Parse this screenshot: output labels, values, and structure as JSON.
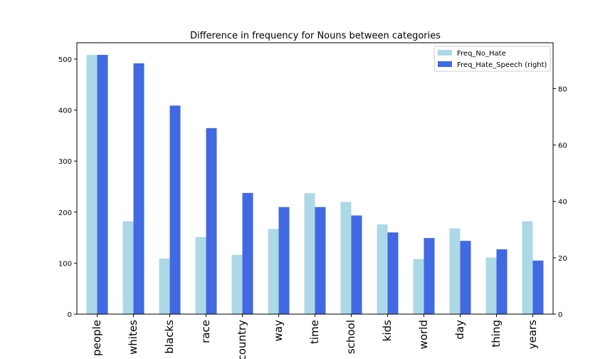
{
  "chart_data": {
    "type": "bar",
    "title": "Difference in frequency for Nouns between categories",
    "categories": [
      "people",
      "whites",
      "blacks",
      "race",
      "country",
      "way",
      "time",
      "school",
      "kids",
      "world",
      "day",
      "thing",
      "years"
    ],
    "series": [
      {
        "name": "Freq_No_Hate",
        "axis": "left",
        "color": "#add8e6",
        "values": [
          508,
          182,
          109,
          151,
          116,
          167,
          237,
          220,
          176,
          108,
          168,
          111,
          182
        ]
      },
      {
        "name": "Freq_Hate_Speech (right)",
        "axis": "right",
        "color": "#4169e1",
        "values": [
          92,
          89,
          74,
          66,
          43,
          38,
          38,
          35,
          29,
          27,
          26,
          23,
          19
        ]
      }
    ],
    "left_axis": {
      "ylim": [
        0,
        532
      ],
      "ticks": [
        0,
        100,
        200,
        300,
        400,
        500
      ]
    },
    "right_axis": {
      "ylim": [
        0,
        96.3
      ],
      "ticks": [
        0,
        20,
        40,
        60,
        80
      ]
    },
    "legend": {
      "position": "upper right"
    },
    "grid": false
  }
}
